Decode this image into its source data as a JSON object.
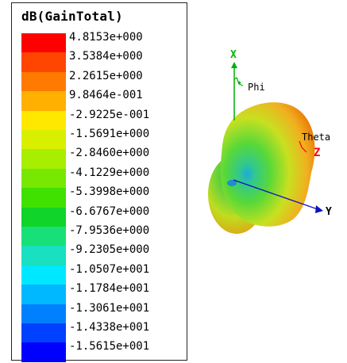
{
  "legend": {
    "title": "dB(GainTotal)",
    "colors": [
      "#ff0000",
      "#ff4500",
      "#ff7a00",
      "#ffb000",
      "#ffe800",
      "#d8ef00",
      "#a8ee00",
      "#78e800",
      "#40e000",
      "#10d428",
      "#18e078",
      "#18e0c0",
      "#00e8ff",
      "#00b8ff",
      "#0080ff",
      "#0040ff",
      "#0000ff"
    ],
    "ticks": [
      "4.8153e+000",
      "3.5384e+000",
      "2.2615e+000",
      "9.8464e-001",
      "-2.9225e-001",
      "-1.5691e+000",
      "-2.8460e+000",
      "-4.1229e+000",
      "-5.3998e+000",
      "-6.6767e+000",
      "-7.9536e+000",
      "-9.2305e+000",
      "-1.0507e+001",
      "-1.1784e+001",
      "-1.3061e+001",
      "-1.4338e+001",
      "-1.5615e+001"
    ]
  },
  "axes": {
    "x_label": "X",
    "y_label": "Y",
    "z_label": "Z",
    "phi_label": "Phi",
    "theta_label": "Theta"
  },
  "colors": {
    "x_axis": "#00b000",
    "y_axis": "#1010c0",
    "z_axis": "#ff0000",
    "pattern_outer": "#e86a00",
    "pattern_mid": "#f0c020",
    "pattern_inner": "#30c830"
  }
}
